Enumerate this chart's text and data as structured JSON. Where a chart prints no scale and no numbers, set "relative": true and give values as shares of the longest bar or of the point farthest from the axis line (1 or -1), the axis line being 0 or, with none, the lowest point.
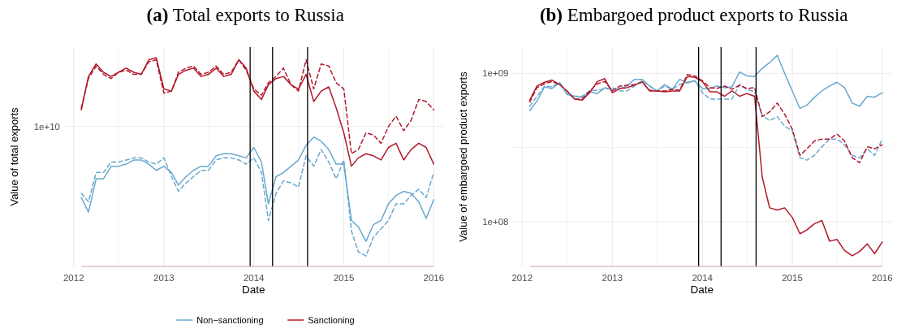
{
  "chart_data": [
    {
      "type": "line",
      "title": "(a) Total exports to Russia",
      "xlabel": "Date",
      "ylabel": "Value of total exports",
      "relative": true,
      "grid": "x",
      "legend": "bottom",
      "x": [
        "2012-02",
        "2012-03",
        "2012-04",
        "2012-05",
        "2012-06",
        "2012-07",
        "2012-08",
        "2012-09",
        "2012-10",
        "2012-11",
        "2012-12",
        "2013-01",
        "2013-02",
        "2013-03",
        "2013-04",
        "2013-05",
        "2013-06",
        "2013-07",
        "2013-08",
        "2013-09",
        "2013-10",
        "2013-11",
        "2013-12",
        "2014-01",
        "2014-02",
        "2014-03",
        "2014-04",
        "2014-05",
        "2014-06",
        "2014-07",
        "2014-08",
        "2014-09",
        "2014-10",
        "2014-11",
        "2014-12",
        "2015-01",
        "2015-02",
        "2015-03",
        "2015-04",
        "2015-05",
        "2015-06",
        "2015-07",
        "2015-08",
        "2015-09",
        "2015-10",
        "2015-11",
        "2015-12",
        "2016-01"
      ],
      "xlim": [
        "2011-11-20",
        "2016-02-10"
      ],
      "xticks": [
        "2012",
        {
          "value": "2012-07",
          "label": null
        },
        "2013",
        {
          "value": "2013-07",
          "label": null
        },
        "2014",
        {
          "value": "2014-07",
          "label": null
        },
        "2015",
        {
          "value": "2015-07",
          "label": null
        },
        "2016"
      ],
      "series": [
        {
          "name": "Non−sanctioning",
          "color": "#67a9cf",
          "line_style": "solid",
          "values": [
            0.33,
            0.26,
            0.42,
            0.42,
            0.48,
            0.48,
            0.49,
            0.51,
            0.51,
            0.49,
            0.46,
            0.48,
            0.45,
            0.39,
            0.43,
            0.46,
            0.48,
            0.48,
            0.53,
            0.54,
            0.54,
            0.53,
            0.52,
            0.57,
            0.5,
            0.3,
            0.43,
            0.45,
            0.48,
            0.51,
            0.58,
            0.62,
            0.6,
            0.56,
            0.49,
            0.49,
            0.22,
            0.19,
            0.12,
            0.2,
            0.22,
            0.3,
            0.34,
            0.36,
            0.35,
            0.31,
            0.23,
            0.32
          ]
        },
        {
          "name": "Sanctioning",
          "color": "#b2182b",
          "line_style": "solid",
          "values": [
            0.75,
            0.91,
            0.97,
            0.93,
            0.91,
            0.93,
            0.95,
            0.93,
            0.92,
            0.99,
            1.0,
            0.85,
            0.84,
            0.92,
            0.94,
            0.95,
            0.91,
            0.92,
            0.95,
            0.91,
            0.92,
            0.99,
            0.95,
            0.84,
            0.8,
            0.87,
            0.9,
            0.91,
            0.87,
            0.85,
            0.92,
            0.79,
            0.84,
            0.86,
            0.76,
            0.64,
            0.48,
            0.52,
            0.54,
            0.53,
            0.51,
            0.57,
            0.59,
            0.51,
            0.56,
            0.59,
            0.57,
            0.49
          ]
        },
        {
          "color": "#67a9cf",
          "line_style": "dashed",
          "values": [
            0.35,
            0.31,
            0.45,
            0.45,
            0.5,
            0.5,
            0.51,
            0.52,
            0.52,
            0.5,
            0.49,
            0.52,
            0.43,
            0.36,
            0.4,
            0.43,
            0.46,
            0.46,
            0.51,
            0.52,
            0.52,
            0.51,
            0.49,
            0.52,
            0.45,
            0.22,
            0.35,
            0.41,
            0.4,
            0.38,
            0.53,
            0.48,
            0.56,
            0.5,
            0.42,
            0.51,
            0.17,
            0.07,
            0.05,
            0.14,
            0.18,
            0.22,
            0.3,
            0.3,
            0.34,
            0.37,
            0.33,
            0.45
          ]
        },
        {
          "color": "#b2182b",
          "line_style": "dashed",
          "values": [
            0.76,
            0.9,
            0.96,
            0.92,
            0.9,
            0.93,
            0.94,
            0.92,
            0.92,
            0.98,
            0.99,
            0.83,
            0.84,
            0.93,
            0.95,
            0.96,
            0.92,
            0.93,
            0.96,
            0.92,
            0.93,
            0.99,
            0.94,
            0.85,
            0.82,
            0.88,
            0.91,
            0.95,
            0.87,
            0.84,
            0.99,
            0.85,
            0.97,
            0.96,
            0.88,
            0.85,
            0.54,
            0.56,
            0.64,
            0.63,
            0.59,
            0.67,
            0.72,
            0.65,
            0.7,
            0.8,
            0.79,
            0.75
          ]
        }
      ],
      "ref_lines": [
        {
          "axis": "y",
          "value": 0.67,
          "label": "1e+10",
          "color": "#ebebeb"
        },
        {
          "axis": "x",
          "value": "2013-12-17",
          "color": "#000000"
        },
        {
          "axis": "x",
          "value": "2014-03-18",
          "color": "#000000"
        },
        {
          "axis": "x",
          "value": "2014-08-07",
          "color": "#000000"
        }
      ]
    },
    {
      "type": "line",
      "title": "(b) Embargoed product exports to Russia",
      "xlabel": "Date",
      "ylabel": "Value of embargoed product exports",
      "log": true,
      "grid": true,
      "x": [
        "2012-02",
        "2012-03",
        "2012-04",
        "2012-05",
        "2012-06",
        "2012-07",
        "2012-08",
        "2012-09",
        "2012-10",
        "2012-11",
        "2012-12",
        "2013-01",
        "2013-02",
        "2013-03",
        "2013-04",
        "2013-05",
        "2013-06",
        "2013-07",
        "2013-08",
        "2013-09",
        "2013-10",
        "2013-11",
        "2013-12",
        "2014-01",
        "2014-02",
        "2014-03",
        "2014-04",
        "2014-05",
        "2014-06",
        "2014-07",
        "2014-08",
        "2014-09",
        "2014-10",
        "2014-11",
        "2014-12",
        "2015-01",
        "2015-02",
        "2015-03",
        "2015-04",
        "2015-05",
        "2015-06",
        "2015-07",
        "2015-08",
        "2015-09",
        "2015-10",
        "2015-11",
        "2015-12",
        "2016-01"
      ],
      "xlim": [
        "2011-11-20",
        "2016-02-10"
      ],
      "xticks": [
        "2012",
        {
          "value": "2012-07",
          "label": null
        },
        "2013",
        {
          "value": "2013-07",
          "label": null
        },
        "2014",
        {
          "value": "2014-07",
          "label": null
        },
        "2015",
        {
          "value": "2015-07",
          "label": null
        },
        "2016"
      ],
      "ylim": [
        50000000.0,
        1500000000.0
      ],
      "yticks": [
        {
          "value": 100000000.0,
          "label": "1e+08"
        },
        {
          "value": 316000000.0,
          "label": null
        },
        {
          "value": 1000000000.0,
          "label": "1e+09"
        }
      ],
      "series": [
        {
          "color": "#67a9cf",
          "line_style": "solid",
          "values": [
            560000000.0,
            650000000.0,
            810000000.0,
            790000000.0,
            860000000.0,
            720000000.0,
            700000000.0,
            690000000.0,
            750000000.0,
            730000000.0,
            800000000.0,
            780000000.0,
            790000000.0,
            820000000.0,
            910000000.0,
            910000000.0,
            820000000.0,
            760000000.0,
            840000000.0,
            780000000.0,
            910000000.0,
            860000000.0,
            890000000.0,
            790000000.0,
            790000000.0,
            820000000.0,
            800000000.0,
            810000000.0,
            1020000000.0,
            960000000.0,
            950000000.0,
            1080000000.0,
            1180000000.0,
            1320000000.0,
            1000000000.0,
            760000000.0,
            580000000.0,
            610000000.0,
            690000000.0,
            760000000.0,
            820000000.0,
            870000000.0,
            800000000.0,
            630000000.0,
            600000000.0,
            700000000.0,
            690000000.0,
            740000000.0
          ]
        },
        {
          "color": "#b2182b",
          "line_style": "solid",
          "values": [
            660000000.0,
            820000000.0,
            870000000.0,
            900000000.0,
            840000000.0,
            760000000.0,
            670000000.0,
            660000000.0,
            740000000.0,
            880000000.0,
            920000000.0,
            740000000.0,
            790000000.0,
            800000000.0,
            830000000.0,
            880000000.0,
            760000000.0,
            760000000.0,
            750000000.0,
            760000000.0,
            760000000.0,
            950000000.0,
            940000000.0,
            880000000.0,
            750000000.0,
            750000000.0,
            700000000.0,
            760000000.0,
            700000000.0,
            730000000.0,
            700000000.0,
            200000000.0,
            124000000.0,
            120000000.0,
            124000000.0,
            107000000.0,
            83000000.0,
            88000000.0,
            97000000.0,
            102000000.0,
            74000000.0,
            76000000.0,
            64000000.0,
            59000000.0,
            63000000.0,
            71000000.0,
            61000000.0,
            73000000.0
          ]
        },
        {
          "color": "#67a9cf",
          "line_style": "dashed",
          "values": [
            600000000.0,
            700000000.0,
            820000000.0,
            810000000.0,
            870000000.0,
            730000000.0,
            700000000.0,
            700000000.0,
            760000000.0,
            770000000.0,
            780000000.0,
            800000000.0,
            760000000.0,
            760000000.0,
            820000000.0,
            890000000.0,
            820000000.0,
            760000000.0,
            820000000.0,
            780000000.0,
            840000000.0,
            870000000.0,
            890000000.0,
            740000000.0,
            670000000.0,
            670000000.0,
            670000000.0,
            670000000.0,
            840000000.0,
            780000000.0,
            750000000.0,
            520000000.0,
            480000000.0,
            510000000.0,
            440000000.0,
            410000000.0,
            270000000.0,
            260000000.0,
            280000000.0,
            320000000.0,
            360000000.0,
            360000000.0,
            330000000.0,
            280000000.0,
            270000000.0,
            310000000.0,
            280000000.0,
            360000000.0
          ]
        },
        {
          "color": "#b2182b",
          "line_style": "dashed",
          "values": [
            640000000.0,
            800000000.0,
            850000000.0,
            880000000.0,
            840000000.0,
            760000000.0,
            670000000.0,
            670000000.0,
            760000000.0,
            850000000.0,
            880000000.0,
            760000000.0,
            820000000.0,
            830000000.0,
            840000000.0,
            870000000.0,
            770000000.0,
            760000000.0,
            760000000.0,
            780000000.0,
            770000000.0,
            980000000.0,
            960000000.0,
            890000000.0,
            800000000.0,
            790000000.0,
            820000000.0,
            780000000.0,
            830000000.0,
            790000000.0,
            800000000.0,
            510000000.0,
            550000000.0,
            630000000.0,
            530000000.0,
            420000000.0,
            280000000.0,
            310000000.0,
            350000000.0,
            360000000.0,
            360000000.0,
            390000000.0,
            350000000.0,
            270000000.0,
            250000000.0,
            320000000.0,
            310000000.0,
            330000000.0
          ]
        }
      ],
      "ref_lines": [
        {
          "axis": "x",
          "value": "2013-12-17",
          "color": "#000000"
        },
        {
          "axis": "x",
          "value": "2014-03-18",
          "color": "#000000"
        },
        {
          "axis": "x",
          "value": "2014-08-07",
          "color": "#000000"
        }
      ]
    }
  ]
}
